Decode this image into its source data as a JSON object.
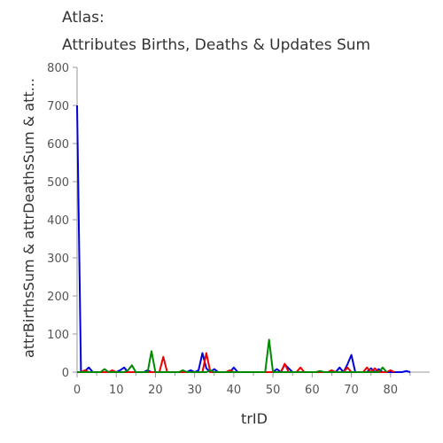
{
  "chart_data": {
    "type": "line",
    "title": [
      "Atlas:",
      "Attributes Births, Deaths & Updates Sum"
    ],
    "xlabel": "trID",
    "ylabel": "attrBirthsSum & attrDeathsSum & att...",
    "xlim": [
      0,
      90
    ],
    "ylim": [
      0,
      800
    ],
    "xticks": [
      0,
      10,
      20,
      30,
      40,
      50,
      60,
      70,
      80
    ],
    "yticks": [
      0,
      100,
      200,
      300,
      400,
      500,
      600,
      700,
      800
    ],
    "series": [
      {
        "color": "#0000dd",
        "points": [
          [
            0,
            700
          ],
          [
            1,
            0
          ],
          [
            2,
            3
          ],
          [
            3,
            12
          ],
          [
            4,
            0
          ],
          [
            10,
            0
          ],
          [
            11,
            5
          ],
          [
            12,
            12
          ],
          [
            13,
            0
          ],
          [
            17,
            0
          ],
          [
            18,
            5
          ],
          [
            19,
            0
          ],
          [
            28,
            0
          ],
          [
            29,
            5
          ],
          [
            30,
            0
          ],
          [
            31,
            5
          ],
          [
            32,
            50
          ],
          [
            33,
            10
          ],
          [
            34,
            0
          ],
          [
            35,
            8
          ],
          [
            36,
            0
          ],
          [
            39,
            0
          ],
          [
            40,
            12
          ],
          [
            41,
            0
          ],
          [
            50,
            0
          ],
          [
            51,
            8
          ],
          [
            52,
            0
          ],
          [
            53,
            20
          ],
          [
            54,
            10
          ],
          [
            55,
            0
          ],
          [
            66,
            0
          ],
          [
            67,
            12
          ],
          [
            68,
            0
          ],
          [
            69,
            20
          ],
          [
            70,
            45
          ],
          [
            71,
            0
          ],
          [
            74,
            0
          ],
          [
            75,
            10
          ],
          [
            76,
            0
          ],
          [
            77,
            8
          ],
          [
            78,
            0
          ],
          [
            83,
            0
          ],
          [
            84,
            3
          ],
          [
            85,
            0
          ]
        ]
      },
      {
        "color": "#ee0000",
        "points": [
          [
            0,
            0
          ],
          [
            1,
            0
          ],
          [
            2,
            5
          ],
          [
            3,
            0
          ],
          [
            8,
            0
          ],
          [
            9,
            5
          ],
          [
            10,
            0
          ],
          [
            21,
            0
          ],
          [
            22,
            40
          ],
          [
            23,
            0
          ],
          [
            32,
            0
          ],
          [
            33,
            50
          ],
          [
            34,
            0
          ],
          [
            38,
            0
          ],
          [
            39,
            5
          ],
          [
            40,
            0
          ],
          [
            52,
            0
          ],
          [
            53,
            22
          ],
          [
            54,
            0
          ],
          [
            56,
            0
          ],
          [
            57,
            12
          ],
          [
            58,
            0
          ],
          [
            64,
            0
          ],
          [
            65,
            5
          ],
          [
            66,
            0
          ],
          [
            68,
            0
          ],
          [
            69,
            12
          ],
          [
            70,
            0
          ],
          [
            73,
            0
          ],
          [
            74,
            12
          ],
          [
            75,
            0
          ],
          [
            76,
            10
          ],
          [
            77,
            0
          ],
          [
            79,
            0
          ],
          [
            80,
            5
          ],
          [
            81,
            0
          ]
        ]
      },
      {
        "color": "#008800",
        "points": [
          [
            0,
            0
          ],
          [
            6,
            0
          ],
          [
            7,
            8
          ],
          [
            8,
            0
          ],
          [
            12,
            0
          ],
          [
            13,
            5
          ],
          [
            14,
            18
          ],
          [
            15,
            0
          ],
          [
            18,
            0
          ],
          [
            19,
            55
          ],
          [
            20,
            0
          ],
          [
            26,
            0
          ],
          [
            27,
            5
          ],
          [
            28,
            0
          ],
          [
            33,
            0
          ],
          [
            34,
            5
          ],
          [
            35,
            0
          ],
          [
            48,
            0
          ],
          [
            49,
            85
          ],
          [
            50,
            0
          ],
          [
            61,
            0
          ],
          [
            62,
            3
          ],
          [
            63,
            0
          ],
          [
            77,
            0
          ],
          [
            78,
            12
          ],
          [
            79,
            0
          ]
        ]
      }
    ]
  }
}
